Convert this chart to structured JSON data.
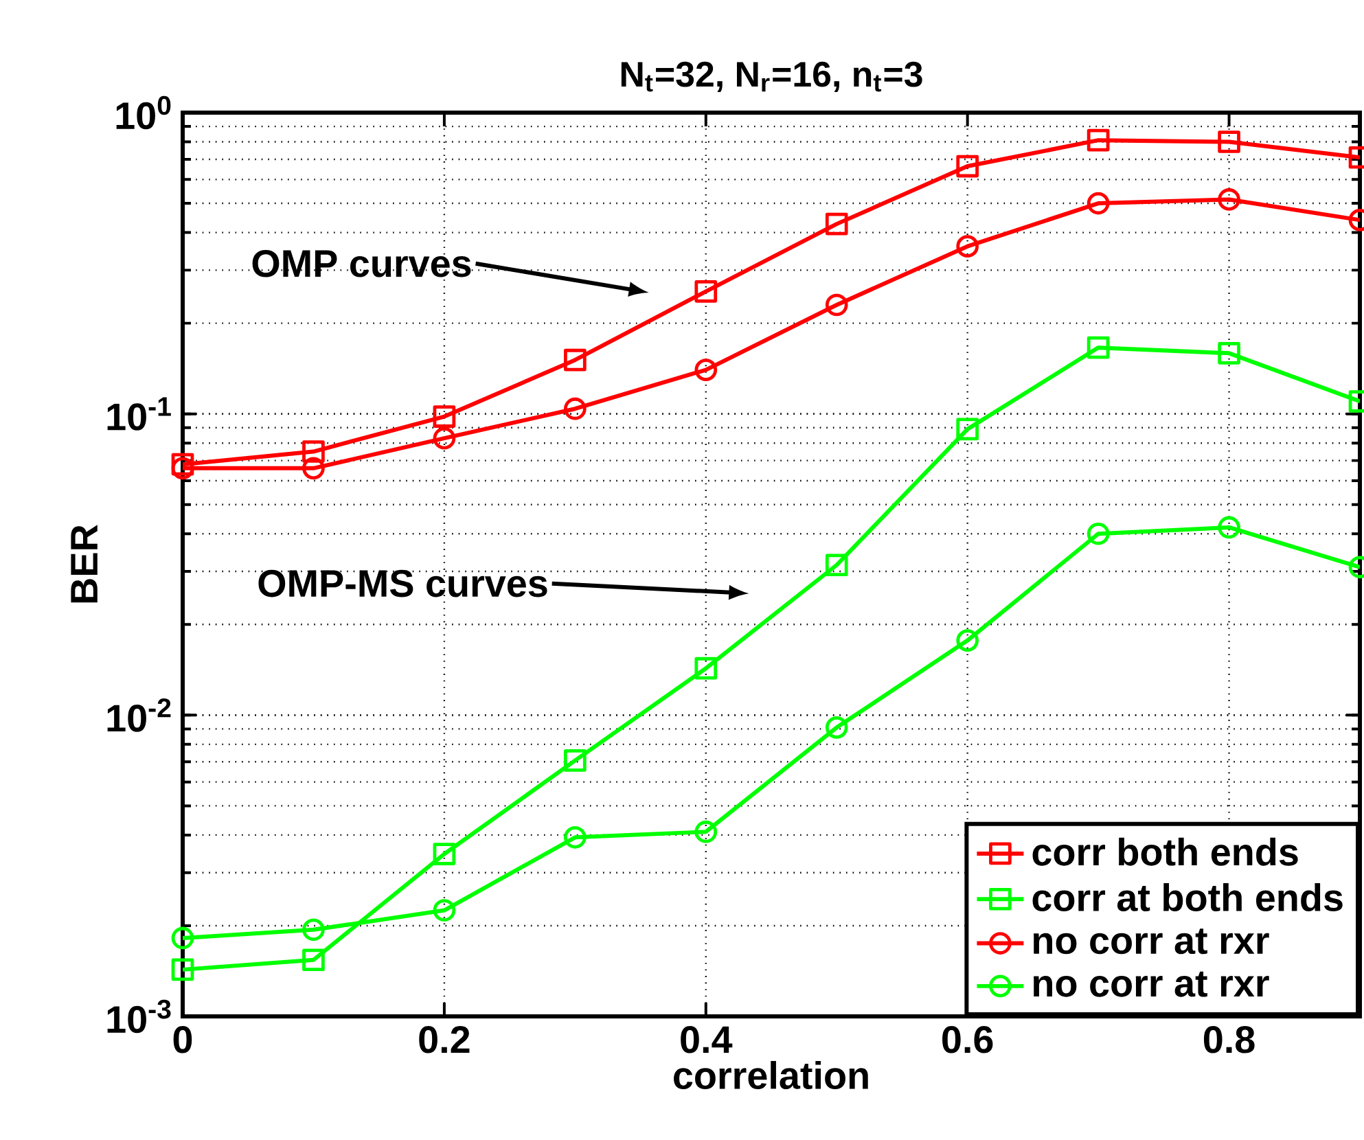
{
  "chart_data": {
    "type": "line",
    "title": "N$_{t}$=32, N$_{r}$=16, n$_{t}$=3",
    "xlabel": "correlation",
    "ylabel": "BER",
    "x": [
      0,
      0.1,
      0.2,
      0.3,
      0.4,
      0.5,
      0.6,
      0.7,
      0.8,
      0.9
    ],
    "series": [
      {
        "name": "corr both ends",
        "color": "#ff0000",
        "marker": "square",
        "values": [
          0.068,
          0.075,
          0.098,
          0.151,
          0.255,
          0.427,
          0.664,
          0.81,
          0.8,
          0.71
        ]
      },
      {
        "name": "corr at both ends",
        "color": "#00ff00",
        "marker": "square",
        "values": [
          0.00143,
          0.00154,
          0.00346,
          0.00707,
          0.0143,
          0.0315,
          0.089,
          0.166,
          0.159,
          0.11
        ]
      },
      {
        "name": "no corr at rxr",
        "color": "#ff0000",
        "marker": "circle",
        "values": [
          0.066,
          0.066,
          0.083,
          0.104,
          0.14,
          0.23,
          0.36,
          0.5,
          0.515,
          0.44
        ]
      },
      {
        "name": "no corr at rxr",
        "color": "#00ff00",
        "marker": "circle",
        "values": [
          0.00182,
          0.00194,
          0.00225,
          0.00393,
          0.0041,
          0.0091,
          0.0177,
          0.04,
          0.042,
          0.031
        ]
      }
    ],
    "xlim": [
      0,
      0.9
    ],
    "ylim": [
      0.001,
      1
    ],
    "xticks": [
      0,
      0.2,
      0.4,
      0.6,
      0.8
    ],
    "yticks": [
      {
        "value": 0.001,
        "label": "10$^{-3}$"
      },
      {
        "value": 0.01,
        "label": "10$^{-2}$"
      },
      {
        "value": 0.1,
        "label": "10$^{-1}$"
      },
      {
        "value": 1,
        "label": "10$^{0}$"
      }
    ],
    "log": "y",
    "grid": true,
    "legend": "bottom right",
    "line_style": "solid",
    "annotations": [
      "OMP curves",
      "OMP-MS curves"
    ]
  }
}
